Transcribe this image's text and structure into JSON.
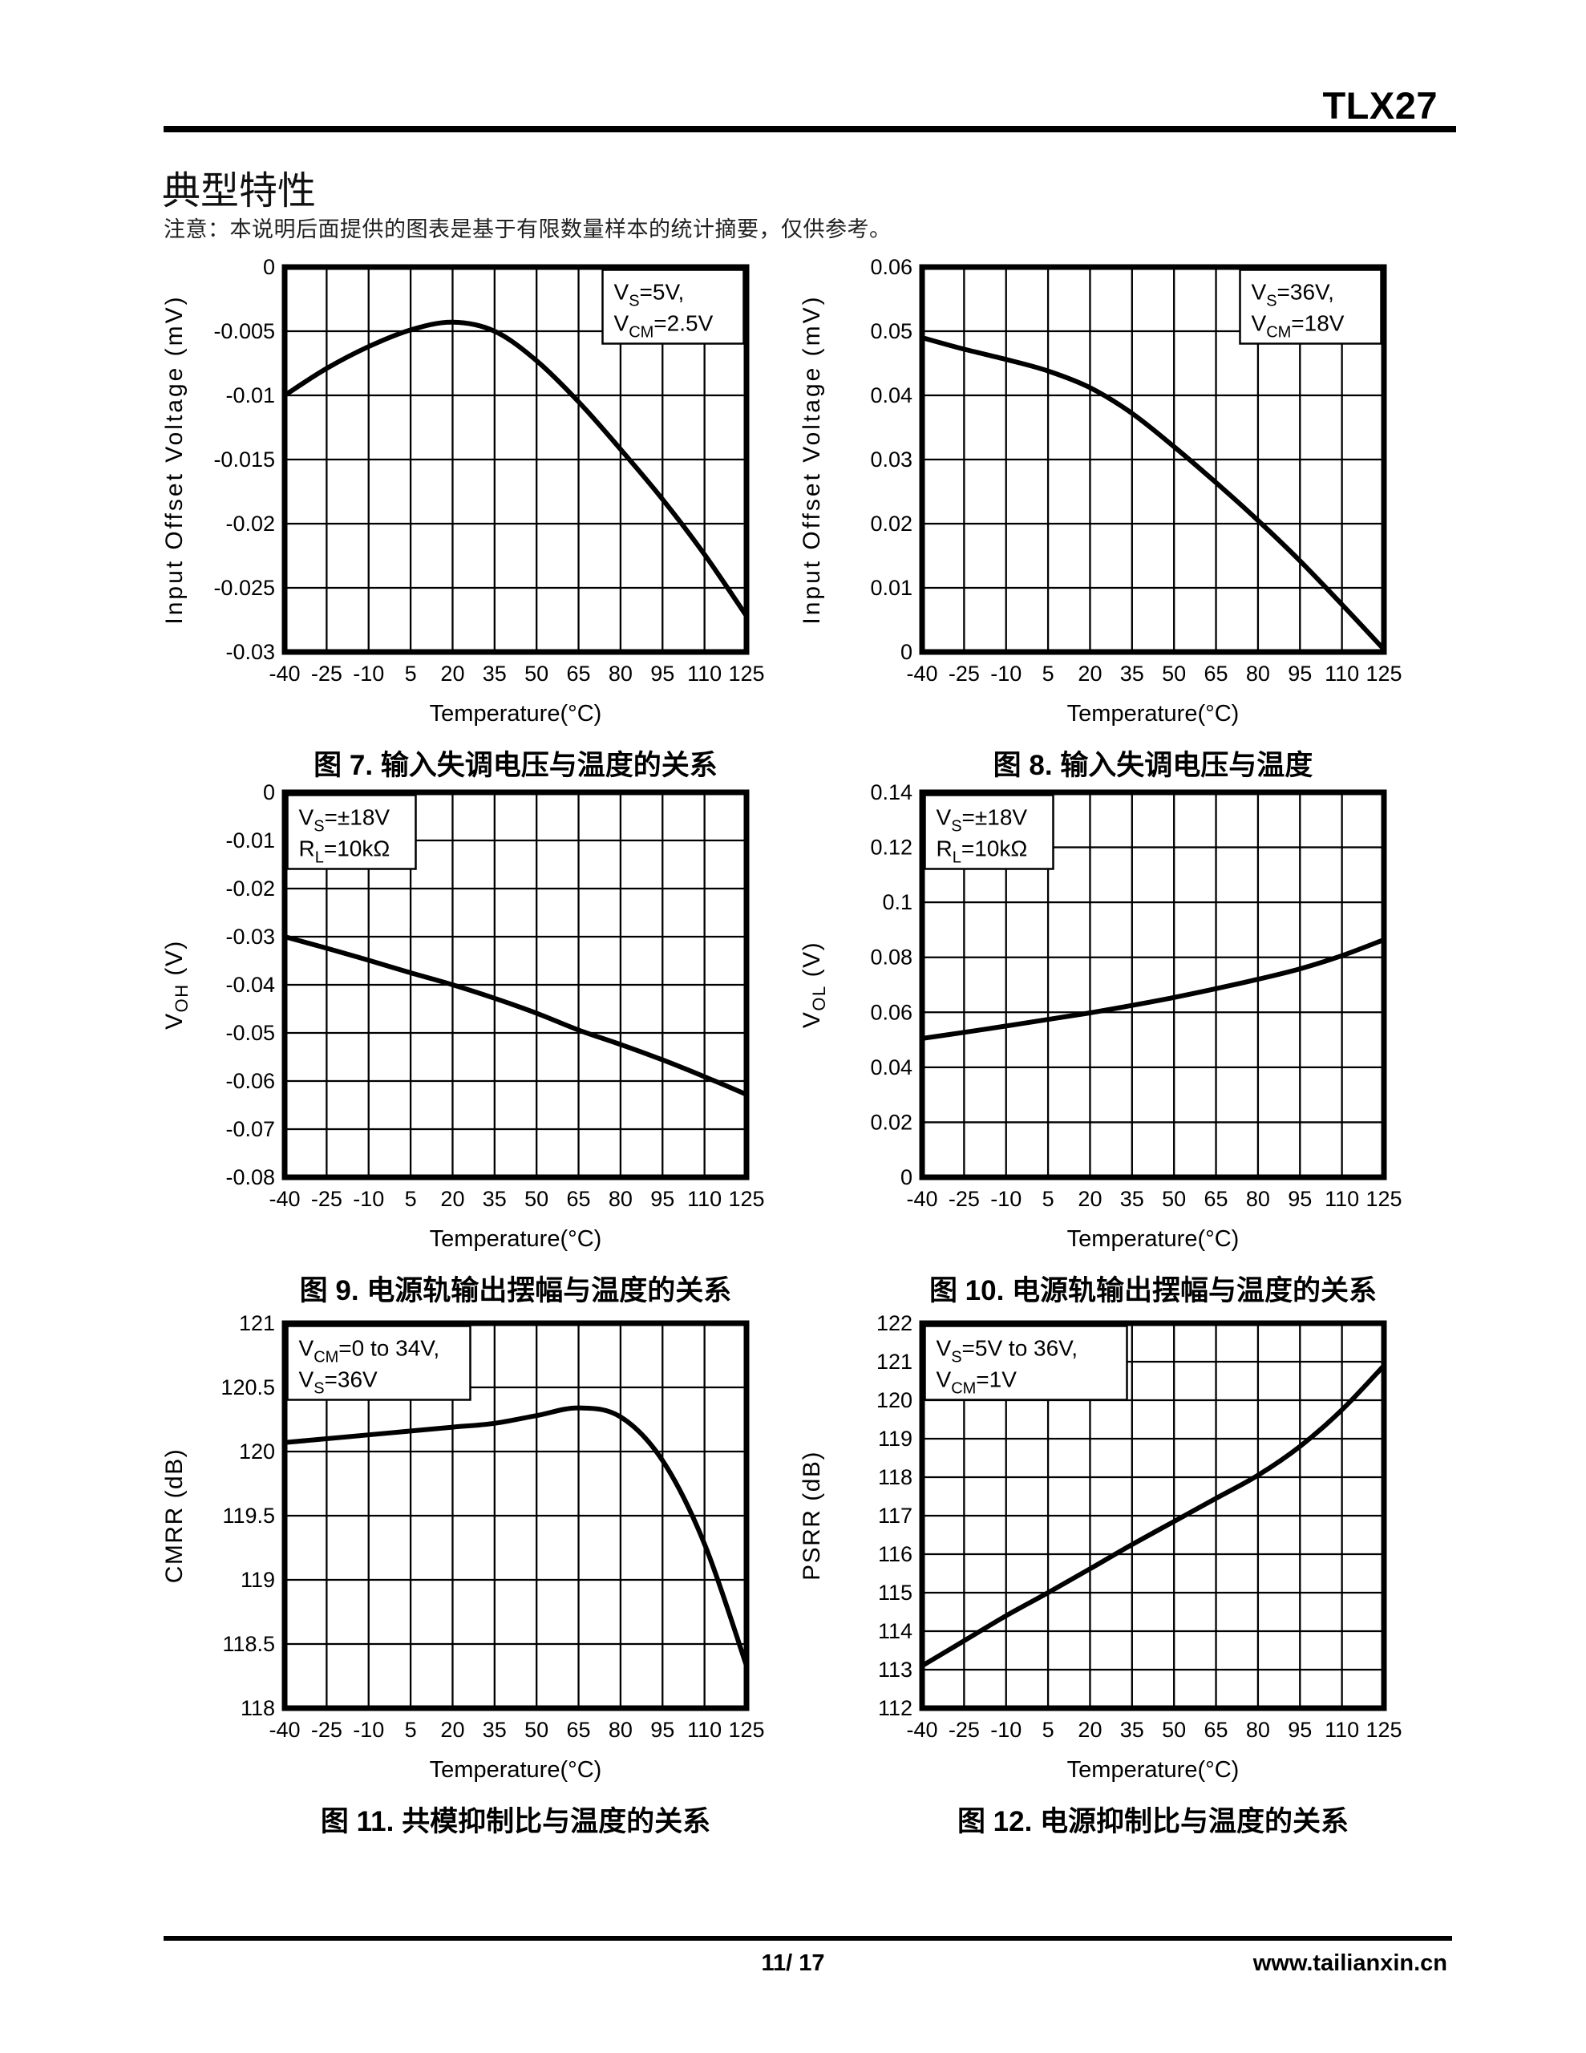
{
  "header": {
    "product": "TLX27"
  },
  "section": {
    "title": "典型特性",
    "note": "注意：本说明后面提供的图表是基于有限数量样本的统计摘要，仅供参考。"
  },
  "footer": {
    "page": "11/ 17",
    "site": "www.tailianxin.cn"
  },
  "chart_data": [
    {
      "id": "fig7",
      "type": "line",
      "caption": "图 7. 输入失调电压与温度的关系",
      "xlabel": "Temperature(°C)",
      "ylabel_text": "Input Offset Voltage (mV)",
      "ylabel_segments": [
        {
          "t": "Input Offset Voltage (mV)"
        }
      ],
      "conditions": {
        "position": "top-right",
        "lines": [
          [
            {
              "t": "V"
            },
            {
              "t": "S",
              "sub": true
            },
            {
              "t": "=5V,"
            }
          ],
          [
            {
              "t": "V"
            },
            {
              "t": "CM",
              "sub": true
            },
            {
              "t": "=2.5V"
            }
          ]
        ]
      },
      "grid": true,
      "line_color": "#000000",
      "xlim": [
        -40,
        125
      ],
      "ylim": [
        -0.03,
        0
      ],
      "x_ticks": [
        -40,
        -25,
        -10,
        5,
        20,
        35,
        50,
        65,
        80,
        95,
        110,
        125
      ],
      "y_tick_labels": [
        "0",
        "-0.005",
        "-0.01",
        "-0.015",
        "-0.02",
        "-0.025",
        "-0.03"
      ],
      "x": [
        -40,
        -25,
        -10,
        5,
        20,
        35,
        50,
        65,
        80,
        95,
        110,
        125
      ],
      "y": [
        -0.01,
        -0.0079,
        -0.0062,
        -0.0049,
        -0.0043,
        -0.005,
        -0.0073,
        -0.0105,
        -0.0142,
        -0.0181,
        -0.0224,
        -0.0272
      ]
    },
    {
      "id": "fig8",
      "type": "line",
      "caption": "图 8. 输入失调电压与温度",
      "xlabel": "Temperature(°C)",
      "ylabel_text": "Input Offset Voltage (mV)",
      "ylabel_segments": [
        {
          "t": "Input Offset Voltage (mV)"
        }
      ],
      "conditions": {
        "position": "top-right",
        "lines": [
          [
            {
              "t": "V"
            },
            {
              "t": "S",
              "sub": true
            },
            {
              "t": "=36V,"
            }
          ],
          [
            {
              "t": "V"
            },
            {
              "t": "CM",
              "sub": true
            },
            {
              "t": "=18V"
            }
          ]
        ]
      },
      "grid": true,
      "line_color": "#000000",
      "xlim": [
        -40,
        125
      ],
      "ylim": [
        0,
        0.06
      ],
      "x_ticks": [
        -40,
        -25,
        -10,
        5,
        20,
        35,
        50,
        65,
        80,
        95,
        110,
        125
      ],
      "y_tick_labels": [
        "0.06",
        "0.05",
        "0.04",
        "0.03",
        "0.02",
        "0.01",
        "0"
      ],
      "x": [
        -40,
        -25,
        -10,
        5,
        20,
        35,
        50,
        65,
        80,
        95,
        110,
        125
      ],
      "y": [
        0.049,
        0.0472,
        0.0456,
        0.0438,
        0.0412,
        0.0372,
        0.032,
        0.0264,
        0.0205,
        0.0142,
        0.0074,
        0.0004
      ]
    },
    {
      "id": "fig9",
      "type": "line",
      "caption": "图 9. 电源轨输出摆幅与温度的关系",
      "xlabel": "Temperature(°C)",
      "ylabel_text": "VOH (V)",
      "ylabel_segments": [
        {
          "t": "V"
        },
        {
          "t": "OH",
          "sub": true
        },
        {
          "t": " (V)"
        }
      ],
      "conditions": {
        "position": "top-left",
        "lines": [
          [
            {
              "t": "V"
            },
            {
              "t": "S",
              "sub": true
            },
            {
              "t": "=±18V"
            }
          ],
          [
            {
              "t": "R"
            },
            {
              "t": "L",
              "sub": true
            },
            {
              "t": "=10kΩ"
            }
          ]
        ]
      },
      "grid": true,
      "line_color": "#000000",
      "xlim": [
        -40,
        125
      ],
      "ylim": [
        -0.08,
        0
      ],
      "x_ticks": [
        -40,
        -25,
        -10,
        5,
        20,
        35,
        50,
        65,
        80,
        95,
        110,
        125
      ],
      "y_tick_labels": [
        "0",
        "-0.01",
        "-0.02",
        "-0.03",
        "-0.04",
        "-0.05",
        "-0.06",
        "-0.07",
        "-0.08"
      ],
      "x": [
        -40,
        -25,
        -10,
        5,
        20,
        35,
        50,
        65,
        80,
        95,
        110,
        125
      ],
      "y": [
        -0.03,
        -0.0324,
        -0.0349,
        -0.0375,
        -0.04,
        -0.0428,
        -0.0459,
        -0.0494,
        -0.0524,
        -0.0556,
        -0.0591,
        -0.0628
      ]
    },
    {
      "id": "fig10",
      "type": "line",
      "caption": "图 10. 电源轨输出摆幅与温度的关系",
      "xlabel": "Temperature(°C)",
      "ylabel_text": "VOL (V)",
      "ylabel_segments": [
        {
          "t": "V"
        },
        {
          "t": "OL",
          "sub": true
        },
        {
          "t": " (V)"
        }
      ],
      "conditions": {
        "position": "top-left",
        "lines": [
          [
            {
              "t": "V"
            },
            {
              "t": "S",
              "sub": true
            },
            {
              "t": "=±18V"
            }
          ],
          [
            {
              "t": "R"
            },
            {
              "t": "L",
              "sub": true
            },
            {
              "t": "=10kΩ"
            }
          ]
        ]
      },
      "grid": true,
      "line_color": "#000000",
      "xlim": [
        -40,
        125
      ],
      "ylim": [
        0,
        0.14
      ],
      "x_ticks": [
        -40,
        -25,
        -10,
        5,
        20,
        35,
        50,
        65,
        80,
        95,
        110,
        125
      ],
      "y_tick_labels": [
        "0.14",
        "0.12",
        "0.1",
        "0.08",
        "0.06",
        "0.04",
        "0.02",
        "0"
      ],
      "x": [
        -40,
        -25,
        -10,
        5,
        20,
        35,
        50,
        65,
        80,
        95,
        110,
        125
      ],
      "y": [
        0.0505,
        0.0527,
        0.055,
        0.0574,
        0.0598,
        0.0625,
        0.0654,
        0.0686,
        0.072,
        0.0758,
        0.0806,
        0.0864
      ]
    },
    {
      "id": "fig11",
      "type": "line",
      "caption": "图 11. 共模抑制比与温度的关系",
      "xlabel": "Temperature(°C)",
      "ylabel_text": "CMRR (dB)",
      "ylabel_segments": [
        {
          "t": "CMRR (dB)"
        }
      ],
      "conditions": {
        "position": "top-left",
        "lines": [
          [
            {
              "t": "V"
            },
            {
              "t": "CM",
              "sub": true
            },
            {
              "t": "=0 to 34V,"
            }
          ],
          [
            {
              "t": "V"
            },
            {
              "t": "S",
              "sub": true
            },
            {
              "t": "=36V"
            }
          ]
        ]
      },
      "grid": true,
      "line_color": "#000000",
      "xlim": [
        -40,
        125
      ],
      "ylim": [
        118,
        121
      ],
      "x_ticks": [
        -40,
        -25,
        -10,
        5,
        20,
        35,
        50,
        65,
        80,
        95,
        110,
        125
      ],
      "y_tick_labels": [
        "121",
        "120.5",
        "120",
        "119.5",
        "119",
        "118.5",
        "118"
      ],
      "x": [
        -40,
        -25,
        -10,
        5,
        20,
        35,
        50,
        65,
        80,
        95,
        110,
        125
      ],
      "y": [
        120.07,
        120.1,
        120.13,
        120.16,
        120.19,
        120.22,
        120.28,
        120.34,
        120.27,
        119.93,
        119.28,
        118.33
      ]
    },
    {
      "id": "fig12",
      "type": "line",
      "caption": "图 12. 电源抑制比与温度的关系",
      "xlabel": "Temperature(°C)",
      "ylabel_text": "PSRR (dB)",
      "ylabel_segments": [
        {
          "t": "PSRR (dB)"
        }
      ],
      "conditions": {
        "position": "top-left",
        "lines": [
          [
            {
              "t": "V"
            },
            {
              "t": "S",
              "sub": true
            },
            {
              "t": "=5V to 36V,"
            }
          ],
          [
            {
              "t": "V"
            },
            {
              "t": "CM",
              "sub": true
            },
            {
              "t": "=1V"
            }
          ]
        ]
      },
      "grid": true,
      "line_color": "#000000",
      "xlim": [
        -40,
        125
      ],
      "ylim": [
        112,
        122
      ],
      "x_ticks": [
        -40,
        -25,
        -10,
        5,
        20,
        35,
        50,
        65,
        80,
        95,
        110,
        125
      ],
      "y_tick_labels": [
        "122",
        "121",
        "120",
        "119",
        "118",
        "117",
        "116",
        "115",
        "114",
        "113",
        "112"
      ],
      "x": [
        -40,
        -25,
        -10,
        5,
        20,
        35,
        50,
        65,
        80,
        95,
        110,
        125
      ],
      "y": [
        113.1,
        113.75,
        114.4,
        115.0,
        115.62,
        116.25,
        116.85,
        117.45,
        118.05,
        118.8,
        119.75,
        120.9
      ]
    }
  ]
}
